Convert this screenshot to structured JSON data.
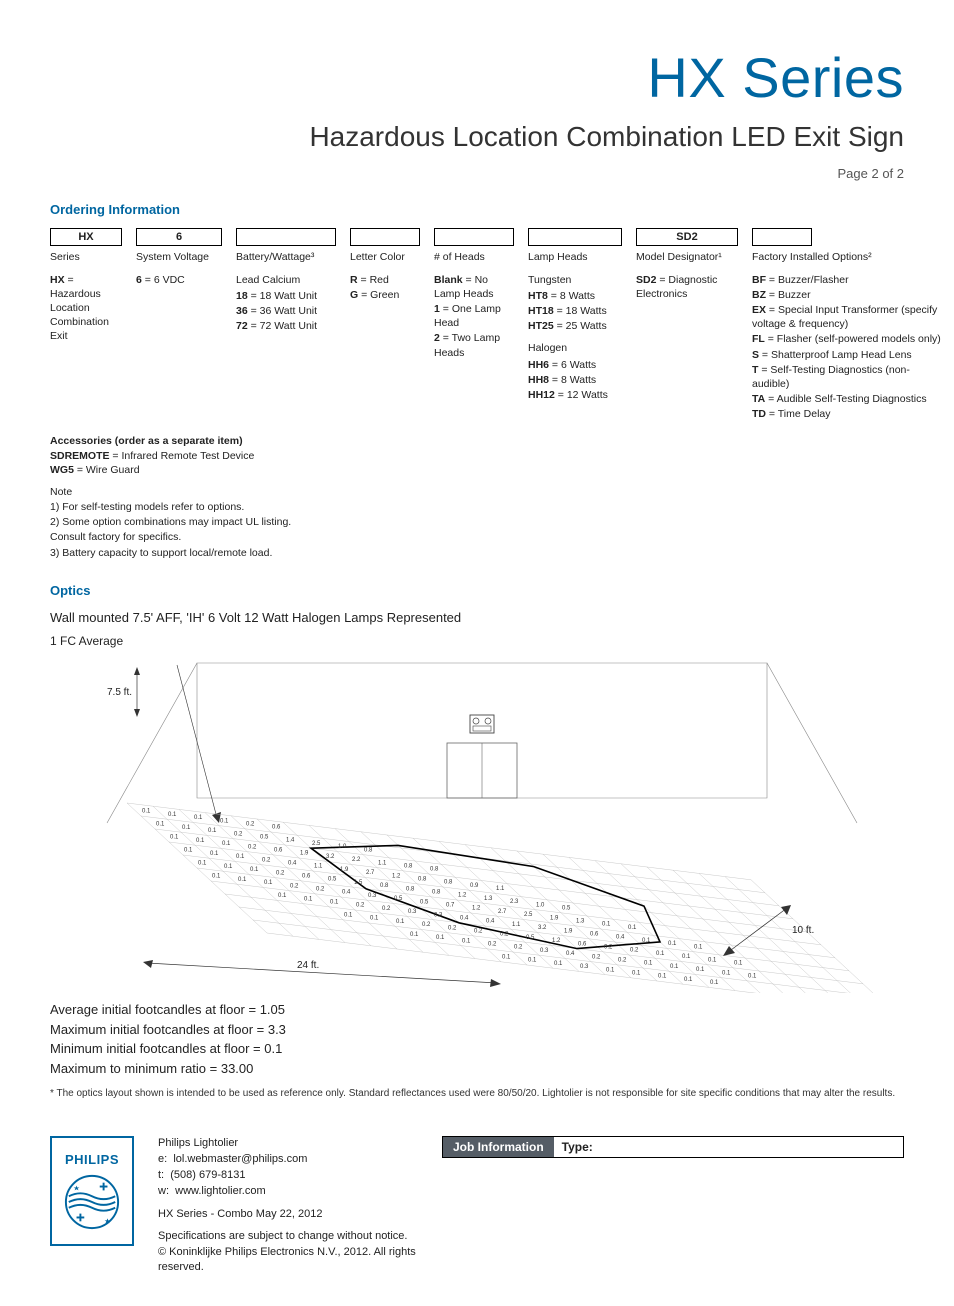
{
  "header": {
    "title": "HX Series",
    "subtitle": "Hazardous Location Combination LED Exit Sign",
    "page": "Page 2 of 2"
  },
  "ordering": {
    "heading": "Ordering Information",
    "columns": [
      {
        "key": "series",
        "label": "Series",
        "boxed": "HX",
        "options": [
          {
            "k": "HX",
            "v": "Hazardous Location Combination Exit"
          }
        ]
      },
      {
        "key": "voltage",
        "label": "System Voltage",
        "boxed": "6",
        "options": [
          {
            "k": "6",
            "v": "6 VDC"
          }
        ]
      },
      {
        "key": "battery",
        "label": "Battery/Wattage³",
        "boxed": "",
        "leadin": "Lead Calcium",
        "options": [
          {
            "k": "18",
            "v": "18 Watt Unit"
          },
          {
            "k": "36",
            "v": "36 Watt Unit"
          },
          {
            "k": "72",
            "v": "72 Watt Unit"
          }
        ]
      },
      {
        "key": "letter",
        "label": "Letter Color",
        "boxed": "",
        "options": [
          {
            "k": "R",
            "v": "Red"
          },
          {
            "k": "G",
            "v": "Green"
          }
        ]
      },
      {
        "key": "heads",
        "label": "# of Heads",
        "boxed": "",
        "options": [
          {
            "k": "Blank",
            "v": "No Lamp Heads"
          },
          {
            "k": "1",
            "v": "One Lamp Head"
          },
          {
            "k": "2",
            "v": "Two Lamp Heads"
          }
        ]
      },
      {
        "key": "lamp",
        "label": "Lamp Heads",
        "boxed": "",
        "groups": [
          {
            "name": "Tungsten",
            "options": [
              {
                "k": "HT8",
                "v": "8 Watts"
              },
              {
                "k": "HT18",
                "v": "18 Watts"
              },
              {
                "k": "HT25",
                "v": "25 Watts"
              }
            ]
          },
          {
            "name": "Halogen",
            "options": [
              {
                "k": "HH6",
                "v": "6 Watts"
              },
              {
                "k": "HH8",
                "v": "8 Watts"
              },
              {
                "k": "HH12",
                "v": "12 Watts"
              }
            ]
          }
        ]
      },
      {
        "key": "model",
        "label": "Model Designator¹",
        "boxed": "SD2",
        "options": [
          {
            "k": "SD2",
            "v": "Diagnostic Electronics"
          }
        ]
      },
      {
        "key": "options",
        "label": "Factory Installed Options²",
        "boxed": "",
        "options": [
          {
            "k": "BF",
            "v": "Buzzer/Flasher"
          },
          {
            "k": "BZ",
            "v": "Buzzer"
          },
          {
            "k": "EX",
            "v": "Special Input Transformer (specify voltage & frequency)"
          },
          {
            "k": "FL",
            "v": "Flasher (self-powered models only)"
          },
          {
            "k": "S",
            "v": "Shatterproof Lamp Head Lens"
          },
          {
            "k": "T",
            "v": "Self-Testing Diagnostics (non-audible)"
          },
          {
            "k": "TA",
            "v": "Audible Self-Testing Diagnostics"
          },
          {
            "k": "TD",
            "v": "Time Delay"
          }
        ]
      }
    ],
    "accessories": {
      "heading": "Accessories (order as a separate item)",
      "items": [
        {
          "k": "SDREMOTE",
          "v": "Infrared Remote Test Device"
        },
        {
          "k": "WG5",
          "v": "Wire Guard"
        }
      ]
    },
    "notes_heading": "Note",
    "notes": [
      "1) For self-testing models refer to options.",
      "2) Some option combinations may impact UL listing.",
      "Consult factory for specifics.",
      "3) Battery capacity to support local/remote load."
    ]
  },
  "optics": {
    "heading": "Optics",
    "desc": "Wall mounted 7.5' AFF, 'IH' 6 Volt 12 Watt Halogen Lamps Represented",
    "fc_label": "1 FC Average",
    "height_label": "7.5 ft.",
    "width_label": "24 ft.",
    "depth_label": "10 ft.",
    "grid_rows": [
      [
        "0.1",
        "0.1",
        "0.1",
        "0.1",
        "0.2",
        "0.6",
        "",
        "",
        "",
        "",
        "",
        "",
        "",
        "",
        "",
        "",
        "",
        "",
        "",
        "",
        "",
        "",
        "",
        ""
      ],
      [
        "0.1",
        "0.1",
        "0.1",
        "0.2",
        "0.5",
        "1.4",
        "2.5",
        "1.0",
        "0.8",
        "",
        "",
        "",
        "",
        "",
        "",
        "",
        "",
        "",
        "",
        "",
        "",
        "",
        "",
        ""
      ],
      [
        "0.1",
        "0.1",
        "0.1",
        "0.2",
        "0.6",
        "1.9",
        "3.2",
        "2.2",
        "1.1",
        "0.8",
        "0.8",
        "",
        "",
        "",
        "",
        "",
        "",
        "",
        "",
        "",
        "",
        "",
        "",
        ""
      ],
      [
        "0.1",
        "0.1",
        "0.1",
        "0.2",
        "0.4",
        "1.1",
        "1.9",
        "2.7",
        "1.2",
        "0.8",
        "0.8",
        "0.9",
        "1.1",
        "",
        "",
        "",
        "",
        "",
        "",
        "",
        "",
        "",
        "",
        ""
      ],
      [
        "0.1",
        "0.1",
        "0.1",
        "0.2",
        "0.6",
        "0.5",
        "1.5",
        "0.8",
        "0.8",
        "0.8",
        "1.2",
        "1.3",
        "2.3",
        "1.0",
        "0.5",
        "",
        "",
        "",
        "",
        "",
        "",
        "",
        "",
        ""
      ],
      [
        "0.1",
        "0.1",
        "0.1",
        "0.2",
        "0.2",
        "0.4",
        "0.3",
        "0.5",
        "0.5",
        "0.7",
        "1.2",
        "2.7",
        "2.5",
        "1.9",
        "1.3",
        "0.1",
        "0.1",
        "",
        "",
        "",
        "",
        "",
        "",
        ""
      ],
      [
        "",
        "",
        "0.1",
        "0.1",
        "0.1",
        "0.2",
        "0.2",
        "0.3",
        "0.3",
        "0.4",
        "0.4",
        "1.1",
        "3.2",
        "1.9",
        "0.6",
        "0.4",
        "0.1",
        "0.1",
        "0.1",
        "",
        "",
        "",
        "",
        ""
      ],
      [
        "",
        "",
        "",
        "",
        "0.1",
        "0.1",
        "0.1",
        "0.2",
        "0.2",
        "0.2",
        "0.2",
        "0.5",
        "1.2",
        "0.6",
        "0.2",
        "0.2",
        "0.1",
        "0.1",
        "0.1",
        "0.1",
        "",
        "",
        "",
        ""
      ],
      [
        "",
        "",
        "",
        "",
        "",
        "",
        "0.1",
        "0.1",
        "0.1",
        "0.2",
        "0.2",
        "0.3",
        "0.4",
        "0.2",
        "0.2",
        "0.1",
        "0.1",
        "0.1",
        "0.1",
        "0.1",
        "",
        "",
        "",
        ""
      ],
      [
        "",
        "",
        "",
        "",
        "",
        "",
        "",
        "",
        "",
        "0.1",
        "0.1",
        "0.1",
        "0.3",
        "0.1",
        "0.1",
        "0.1",
        "0.1",
        "0.1",
        "",
        "",
        "",
        "",
        "",
        ""
      ]
    ],
    "metrics": [
      "Average initial footcandles at floor = 1.05",
      "Maximum initial footcandles at floor = 3.3",
      "Minimum initial footcandles at floor = 0.1",
      "Maximum to minimum ratio = 33.00"
    ],
    "footnote": "* The optics layout shown is intended to be used as reference only. Standard reflectances used were 80/50/20. Lightolier is not responsible for site specific conditions that may alter the results."
  },
  "footer": {
    "brand": "PHILIPS",
    "company": "Philips Lightolier",
    "email_label": "e:",
    "email": "lol.webmaster@philips.com",
    "tel_label": "t:",
    "tel": "(508) 679-8131",
    "web_label": "w:",
    "web": "www.lightolier.com",
    "revline": "HX Series - Combo   May 22, 2012",
    "legal1": "Specifications are subject to change without notice.",
    "legal2": "© Koninklijke Philips Electronics N.V., 2012. All rights reserved.",
    "job_label": "Job Information",
    "type_label": "Type:"
  },
  "colors": {
    "brand_blue": "#0066a1",
    "text": "#222222",
    "box_border": "#000000",
    "jobinfo_bg": "#555d66"
  }
}
